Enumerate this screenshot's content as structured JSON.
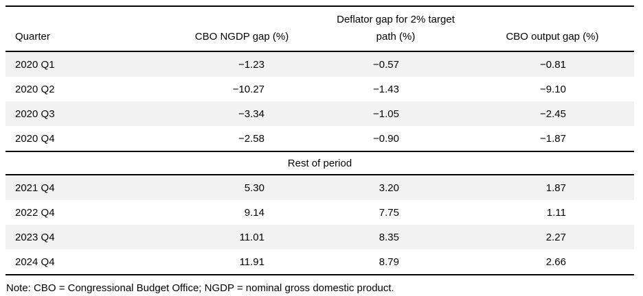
{
  "style_tokens": {
    "row_stripe_color": "#f2f2f2",
    "rule_color": "#000000",
    "text_color": "#000000"
  },
  "table": {
    "columns": {
      "quarter": "Quarter",
      "ngdp": "CBO NGDP gap (%)",
      "deflator": "Deflator gap for 2% target path (%)",
      "output": "CBO output gap (%)"
    },
    "section_2020": {
      "rows": [
        {
          "quarter": "2020 Q1",
          "ngdp": "−1.23",
          "deflator": "−0.57",
          "output": "−0.81"
        },
        {
          "quarter": "2020 Q2",
          "ngdp": "−10.27",
          "deflator": "−1.43",
          "output": "−9.10"
        },
        {
          "quarter": "2020 Q3",
          "ngdp": "−3.34",
          "deflator": "−1.05",
          "output": "−2.45"
        },
        {
          "quarter": "2020 Q4",
          "ngdp": "−2.58",
          "deflator": "−0.90",
          "output": "−1.87"
        }
      ]
    },
    "section_rest": {
      "label": "Rest of period",
      "rows": [
        {
          "quarter": "2021 Q4",
          "ngdp": "5.30",
          "deflator": "3.20",
          "output": "1.87"
        },
        {
          "quarter": "2022 Q4",
          "ngdp": "9.14",
          "deflator": "7.75",
          "output": "1.11"
        },
        {
          "quarter": "2023 Q4",
          "ngdp": "11.01",
          "deflator": "8.35",
          "output": "2.27"
        },
        {
          "quarter": "2024 Q4",
          "ngdp": "11.91",
          "deflator": "8.79",
          "output": "2.66"
        }
      ]
    }
  },
  "note": "Note: CBO = Congressional Budget Office; NGDP = nominal gross domestic product."
}
